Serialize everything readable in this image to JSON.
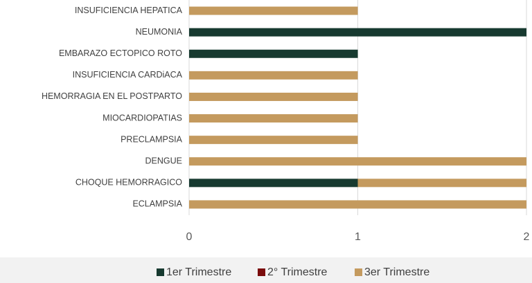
{
  "chart_data": {
    "type": "stacked_barh",
    "categories": [
      "INSUFICIENCIA HEPATICA",
      "NEUMONIA",
      "EMBARAZO ECTOPICO ROTO",
      "INSUFICIENCIA CARDiACA",
      "HEMORRAGIA EN EL  POSTPARTO",
      "MIOCARDIOPATIAS",
      "PRECLAMPSIA",
      "DENGUE",
      "CHOQUE HEMORRAGICO",
      "ECLAMPSIA"
    ],
    "series": [
      {
        "name": "1er Trimestre",
        "color": "#173a30",
        "values": [
          0,
          2,
          1,
          0,
          0,
          0,
          0,
          0,
          1,
          0
        ]
      },
      {
        "name": "2° Trimestre",
        "color": "#7a0c0c",
        "values": [
          0,
          0,
          0,
          0,
          0,
          0,
          0,
          0,
          0,
          0
        ]
      },
      {
        "name": "3er Trimestre",
        "color": "#c49a5e",
        "values": [
          1,
          0,
          0,
          1,
          1,
          1,
          1,
          2,
          1,
          2
        ]
      }
    ],
    "xlim": [
      0,
      2
    ],
    "xticks": [
      0,
      1,
      2
    ],
    "grid": true,
    "legend": "bottom"
  }
}
